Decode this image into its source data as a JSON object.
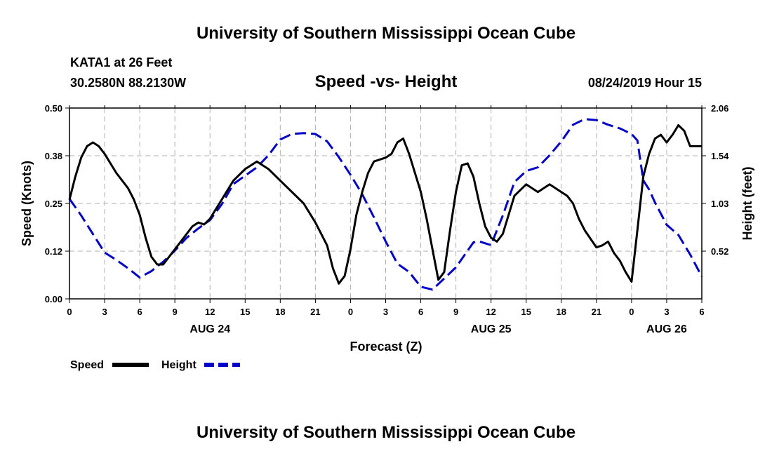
{
  "page": {
    "header_title": "University of Southern Mississippi Ocean Cube",
    "footer_title": "University of Southern Mississippi Ocean Cube",
    "station_name": "KATA1 at 26 Feet",
    "station_coords": "30.2580N 88.2130W",
    "run_time": "08/24/2019 Hour 15"
  },
  "chart_data": {
    "type": "line",
    "title": "Speed -vs- Height",
    "xlabel": "Forecast (Z)",
    "ylabel": "Speed (Knots)",
    "y2label": "Height (feet)",
    "x_range": [
      0,
      54
    ],
    "ylim": [
      0,
      0.5
    ],
    "y2lim": [
      0,
      2.06
    ],
    "y_ticks": [
      "0.00",
      "0.12",
      "0.25",
      "0.38",
      "0.50"
    ],
    "y2_ticks": [
      "0.52",
      "1.03",
      "1.54",
      "2.06"
    ],
    "y2_tick_values": [
      0.515,
      1.03,
      1.545,
      2.06
    ],
    "x_ticks": [
      0,
      3,
      6,
      9,
      12,
      15,
      18,
      21,
      24,
      27,
      30,
      33,
      36,
      39,
      42,
      45,
      48,
      51,
      54
    ],
    "x_tick_labels": [
      "0",
      "3",
      "6",
      "9",
      "12",
      "15",
      "18",
      "21",
      "0",
      "3",
      "6",
      "9",
      "12",
      "15",
      "18",
      "21",
      "0",
      "3",
      "6"
    ],
    "date_labels": [
      {
        "x": 12,
        "label": "AUG 24"
      },
      {
        "x": 36,
        "label": "AUG 25"
      },
      {
        "x": 51,
        "label": "AUG 26"
      }
    ],
    "series": [
      {
        "name": "Speed",
        "color": "#000000",
        "axis": "left",
        "x": [
          0,
          0.5,
          1,
          1.5,
          2,
          2.5,
          3,
          4,
          5,
          5.5,
          6,
          6.5,
          7,
          7.5,
          8,
          9,
          10,
          10.5,
          11,
          11.5,
          12,
          13,
          14,
          15,
          16,
          17,
          18,
          19,
          20,
          21,
          22,
          22.5,
          23,
          23.5,
          24,
          24.5,
          25,
          25.5,
          26,
          27,
          27.5,
          28,
          28.5,
          29,
          30,
          30.5,
          31,
          31.5,
          32,
          32.5,
          33,
          33.5,
          34,
          34.5,
          35,
          35.5,
          36,
          36.5,
          37,
          37.5,
          38,
          39,
          40,
          41,
          42,
          42.5,
          43,
          43.5,
          44,
          45,
          45.5,
          46,
          46.5,
          47,
          47.5,
          48,
          48.5,
          49,
          49.5,
          50,
          50.5,
          51,
          51.5,
          52,
          52.5,
          53,
          53.5,
          54
        ],
        "values": [
          0.26,
          0.32,
          0.37,
          0.4,
          0.41,
          0.4,
          0.38,
          0.33,
          0.29,
          0.26,
          0.22,
          0.16,
          0.11,
          0.09,
          0.09,
          0.13,
          0.17,
          0.19,
          0.2,
          0.195,
          0.21,
          0.26,
          0.31,
          0.34,
          0.36,
          0.34,
          0.31,
          0.28,
          0.25,
          0.2,
          0.14,
          0.08,
          0.04,
          0.06,
          0.13,
          0.22,
          0.28,
          0.33,
          0.36,
          0.37,
          0.38,
          0.41,
          0.42,
          0.38,
          0.28,
          0.21,
          0.13,
          0.05,
          0.07,
          0.18,
          0.28,
          0.35,
          0.355,
          0.32,
          0.25,
          0.19,
          0.16,
          0.15,
          0.17,
          0.22,
          0.27,
          0.3,
          0.28,
          0.3,
          0.28,
          0.27,
          0.25,
          0.21,
          0.18,
          0.135,
          0.14,
          0.15,
          0.12,
          0.1,
          0.07,
          0.045,
          0.18,
          0.32,
          0.38,
          0.42,
          0.43,
          0.41,
          0.43,
          0.455,
          0.44,
          0.4,
          0.4,
          0.4
        ]
      },
      {
        "name": "Height",
        "color": "#0000cc",
        "axis": "right",
        "x": [
          0,
          1,
          2,
          3,
          4,
          5,
          6,
          7,
          8,
          9,
          10,
          11,
          12,
          13,
          14,
          15,
          16,
          17,
          18,
          19,
          20,
          21,
          22,
          23,
          24,
          25,
          26,
          27,
          28,
          29,
          30,
          31,
          32,
          33,
          34,
          34.5,
          35,
          35.5,
          36,
          37,
          38,
          39,
          40,
          41,
          42,
          43,
          44,
          45,
          46,
          47,
          48,
          48.5,
          49,
          49.5,
          50,
          50.5,
          51,
          52,
          53,
          54
        ],
        "values": [
          1.08,
          0.9,
          0.7,
          0.5,
          0.42,
          0.33,
          0.23,
          0.3,
          0.4,
          0.52,
          0.66,
          0.76,
          0.85,
          1.02,
          1.24,
          1.33,
          1.42,
          1.55,
          1.72,
          1.78,
          1.79,
          1.78,
          1.7,
          1.53,
          1.34,
          1.13,
          0.88,
          0.62,
          0.38,
          0.29,
          0.13,
          0.1,
          0.22,
          0.34,
          0.52,
          0.61,
          0.62,
          0.6,
          0.58,
          0.9,
          1.26,
          1.38,
          1.42,
          1.55,
          1.7,
          1.88,
          1.94,
          1.93,
          1.88,
          1.84,
          1.78,
          1.71,
          1.28,
          1.18,
          1.04,
          0.92,
          0.8,
          0.69,
          0.48,
          0.24
        ]
      }
    ],
    "legend": [
      {
        "label": "Speed",
        "color": "#000000",
        "style": "solid"
      },
      {
        "label": "Height",
        "color": "#0000cc",
        "style": "dashed"
      }
    ],
    "legend_position": "bottom-left",
    "grid": true
  }
}
